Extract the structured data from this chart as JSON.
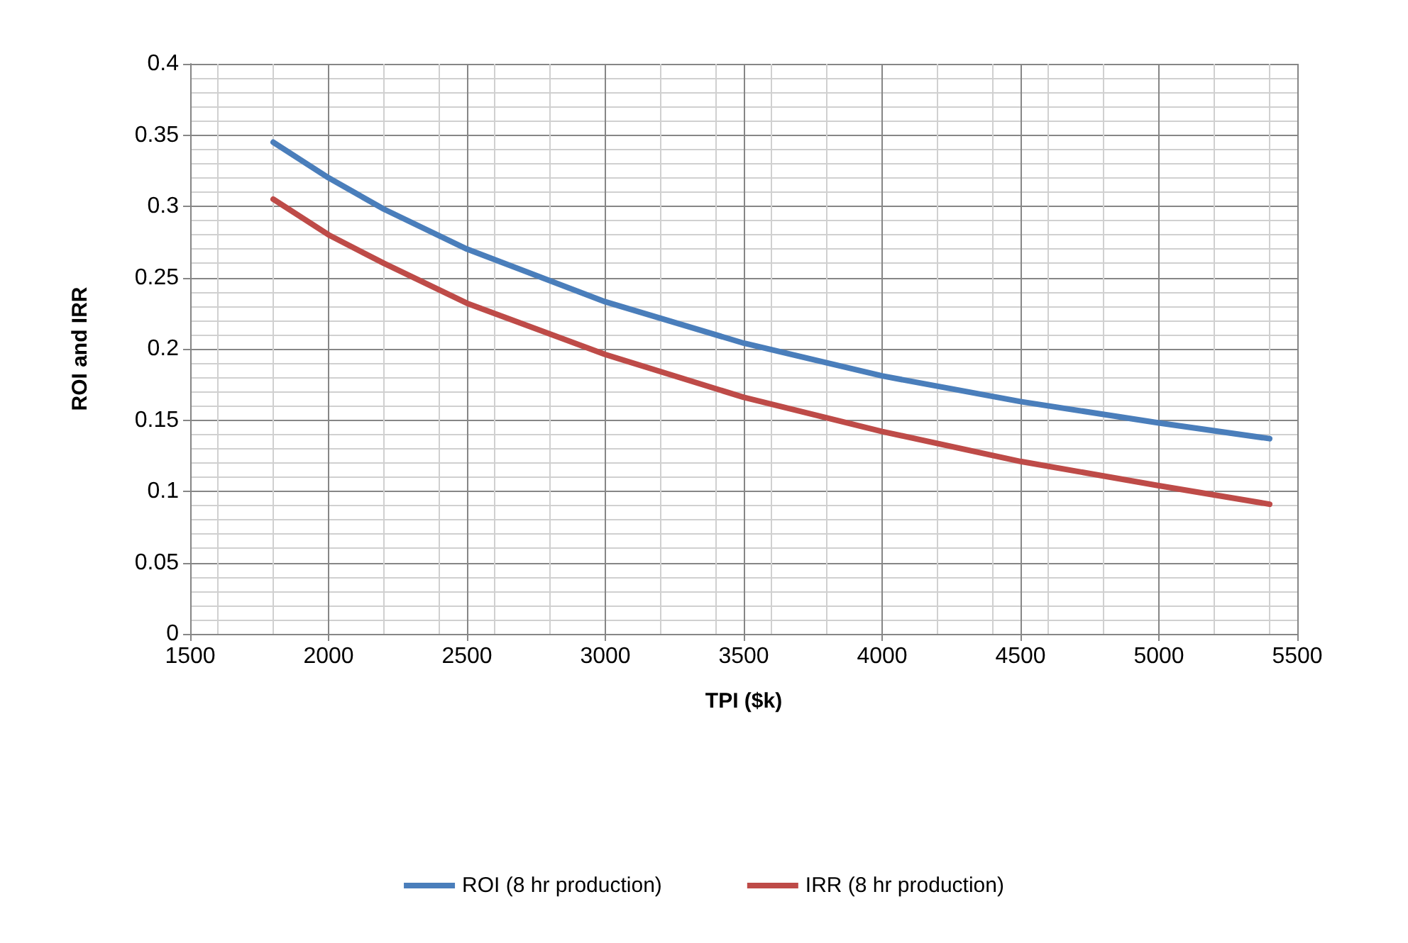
{
  "chart_data": {
    "type": "line",
    "xlabel": "TPI ($k)",
    "ylabel": "ROI and IRR",
    "x": [
      1800,
      2000,
      2200,
      2500,
      3000,
      3500,
      4000,
      4500,
      5000,
      5400
    ],
    "series": [
      {
        "name": "ROI (8 hr production)",
        "color": "#4a7ebb",
        "values": [
          0.345,
          0.32,
          0.298,
          0.27,
          0.233,
          0.204,
          0.181,
          0.163,
          0.148,
          0.137
        ]
      },
      {
        "name": "IRR (8 hr production)",
        "color": "#be4b48",
        "values": [
          0.305,
          0.28,
          0.26,
          0.232,
          0.196,
          0.166,
          0.142,
          0.121,
          0.104,
          0.091
        ]
      }
    ],
    "xlim": [
      1500,
      5500
    ],
    "xticks": [
      1500,
      2000,
      2500,
      3000,
      3500,
      4000,
      4500,
      5000,
      5500
    ],
    "ylim": [
      0,
      0.4
    ],
    "yticks": [
      0,
      0.05,
      0.1,
      0.15,
      0.2,
      0.25,
      0.3,
      0.35,
      0.4
    ],
    "grid": true,
    "legend": "bottom",
    "marker": "none",
    "line_style": "solid"
  }
}
